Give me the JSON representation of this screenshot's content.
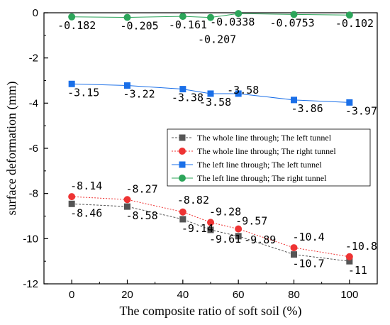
{
  "chart_data": {
    "type": "line",
    "title": "",
    "xlabel": "The composite ratio of soft soil (%)",
    "ylabel": "surface deformation (mm)",
    "xlim": [
      -10,
      110
    ],
    "ylim": [
      -12,
      0
    ],
    "x_ticks": [
      "0",
      "20",
      "40",
      "60",
      "80",
      "100"
    ],
    "y_ticks": [
      "0",
      "-2",
      "-4",
      "-6",
      "-8",
      "-10",
      "-12"
    ],
    "x": [
      0,
      20,
      40,
      50,
      60,
      80,
      100
    ],
    "grid": false,
    "legend_position": "center-right",
    "series": [
      {
        "name": "The whole line through; The left tunnel",
        "color": "#555555",
        "marker": "square",
        "line_style": "dashed",
        "values": [
          -8.46,
          -8.58,
          -9.14,
          -9.61,
          -9.89,
          -10.7,
          -11
        ],
        "labels": [
          "-8.46",
          "-8.58",
          "-9.14",
          "-9.61",
          "-9.89",
          "-10.7",
          "-11"
        ]
      },
      {
        "name": "The whole line through; The right tunnel",
        "color": "#ee3333",
        "marker": "circle",
        "line_style": "dotted",
        "values": [
          -8.14,
          -8.27,
          -8.82,
          -9.28,
          -9.57,
          -10.4,
          -10.8
        ],
        "labels": [
          "-8.14",
          "-8.27",
          "-8.82",
          "-9.28",
          "-9.57",
          "-10.4",
          "-10.8"
        ]
      },
      {
        "name": "The left line through; The left tunnel",
        "color": "#1a6fe8",
        "marker": "square",
        "line_style": "solid",
        "values": [
          -3.15,
          -3.22,
          -3.38,
          -3.58,
          -3.58,
          -3.86,
          -3.97
        ],
        "labels": [
          "-3.15",
          "-3.22",
          "-3.38",
          "-3.58",
          "-3.58",
          "-3.86",
          "-3.97"
        ]
      },
      {
        "name": "The left line through; The right tunnel",
        "color": "#2ca55a",
        "marker": "circle",
        "line_style": "solid",
        "values": [
          -0.182,
          -0.205,
          -0.161,
          -0.207,
          -0.0338,
          -0.0753,
          -0.102
        ],
        "labels": [
          "-0.182",
          "-0.205",
          "-0.161",
          "-0.207",
          "-0.0338",
          "-0.0753",
          "-0.102"
        ]
      }
    ]
  }
}
